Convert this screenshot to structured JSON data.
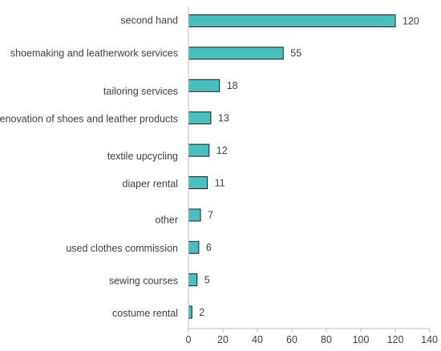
{
  "chart_data": {
    "type": "bar",
    "orientation": "horizontal",
    "categories": [
      "second hand",
      "shoemaking and leatherwork services",
      "tailoring services",
      "renovation of shoes and leather products",
      "textile upcycling",
      "diaper rental",
      "other",
      "used clothes commission",
      "sewing courses",
      "costume rental"
    ],
    "values": [
      120,
      55,
      18,
      13,
      12,
      11,
      7,
      6,
      5,
      2
    ],
    "value_labels": [
      "120",
      "55",
      "18",
      "13",
      "12",
      "11",
      "7",
      "6",
      "5",
      "2"
    ],
    "xlim": [
      0,
      140
    ],
    "x_ticks": [
      0,
      20,
      40,
      60,
      80,
      100,
      120,
      140
    ],
    "x_tick_labels": [
      "0",
      "20",
      "40",
      "60",
      "80",
      "100",
      "120",
      "140"
    ],
    "grid": false,
    "bar_color": "#4bbfbf",
    "bar_edge_color": "#1f1f1f"
  }
}
